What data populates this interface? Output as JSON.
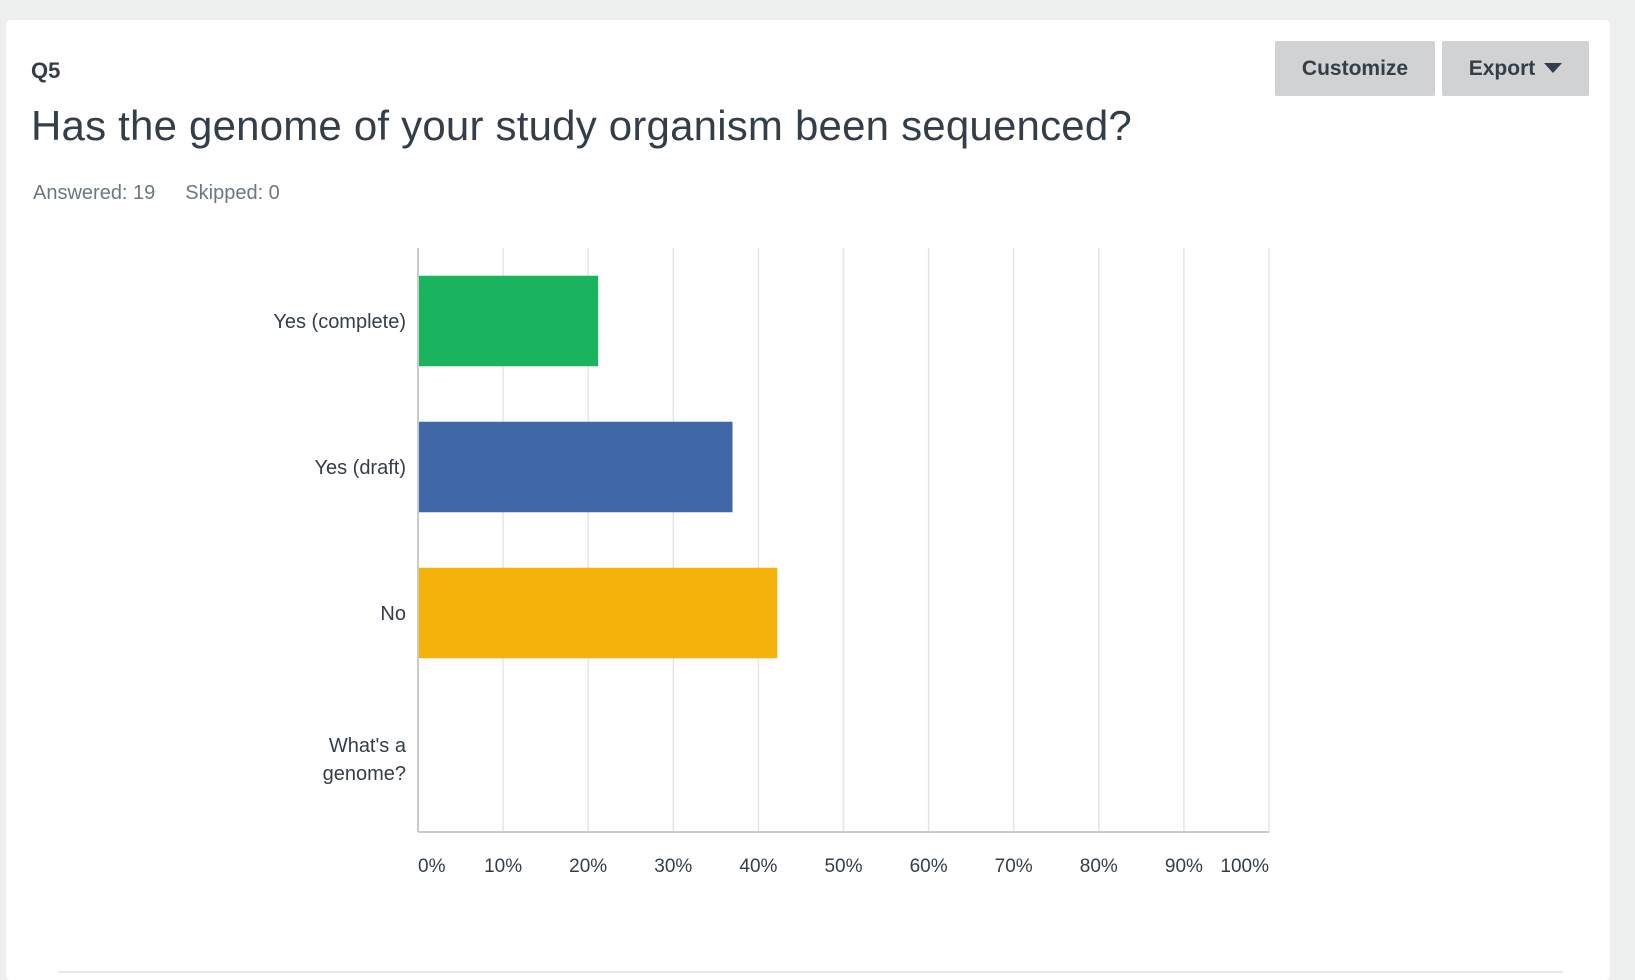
{
  "question": {
    "number": "Q5",
    "title": "Has the genome of your study organism been sequenced?",
    "answered": "Answered: 19",
    "skipped": "Skipped: 0"
  },
  "toolbar": {
    "customize_label": "Customize",
    "export_label": "Export",
    "export_icon": "caret-down-icon"
  },
  "colors": {
    "grid": "#e3e5e6",
    "axis": "#c8cbcd",
    "label": "#333e48"
  },
  "chart_data": {
    "type": "bar",
    "orientation": "horizontal",
    "title": "",
    "xlabel": "",
    "ylabel": "",
    "categories": [
      "Yes (complete)",
      "Yes (draft)",
      "No",
      "What's a genome?"
    ],
    "category_lines": [
      [
        "Yes (complete)"
      ],
      [
        "Yes (draft)"
      ],
      [
        "No"
      ],
      [
        "What's a",
        "genome?"
      ]
    ],
    "values": [
      21.05,
      36.84,
      42.11,
      0
    ],
    "colors": [
      "#1ab45e",
      "#4068a8",
      "#f5b20a",
      "#9d9d9d"
    ],
    "xlim": [
      0,
      100
    ],
    "ticks": [
      "0%",
      "10%",
      "20%",
      "30%",
      "40%",
      "50%",
      "60%",
      "70%",
      "80%",
      "90%",
      "100%"
    ],
    "grid": true
  }
}
